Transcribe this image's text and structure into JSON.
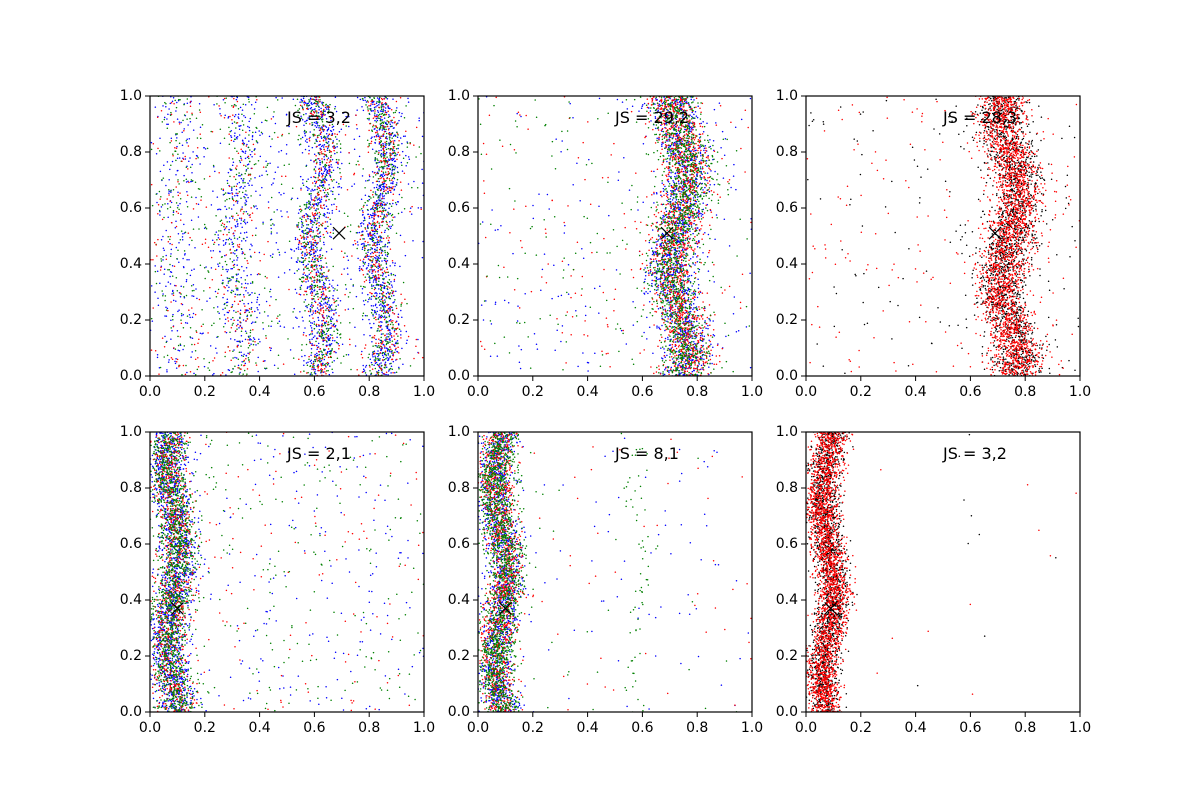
{
  "chart_data": [
    {
      "type": "scatter",
      "annotation": "JS = 3,2",
      "xlim": [
        0,
        1
      ],
      "ylim": [
        0,
        1
      ],
      "xticks": [
        "0.0",
        "0.2",
        "0.4",
        "0.6",
        "0.8",
        "1.0"
      ],
      "yticks": [
        "0.0",
        "0.2",
        "0.4",
        "0.6",
        "0.8",
        "1.0"
      ],
      "marker": {
        "x": 0.69,
        "y": 0.51
      },
      "bands": [
        {
          "center": 0.61,
          "amplitude": 0.025,
          "width": 0.03,
          "weight": 0.3
        },
        {
          "center": 0.84,
          "amplitude": 0.025,
          "width": 0.03,
          "weight": 0.32
        }
      ],
      "bands_secondary": [
        {
          "center": 0.32,
          "amplitude": 0.02,
          "width": 0.04,
          "weight": 0.12
        },
        {
          "center": 0.09,
          "amplitude": 0.02,
          "width": 0.04,
          "weight": 0.06
        }
      ],
      "background_fraction": 0.38,
      "series": [
        {
          "color": "#0000ff",
          "count": 2300
        },
        {
          "color": "#008000",
          "count": 1500
        },
        {
          "color": "#ff0000",
          "count": 1000
        }
      ]
    },
    {
      "type": "scatter",
      "annotation": "JS = 29,2",
      "xlim": [
        0,
        1
      ],
      "ylim": [
        0,
        1
      ],
      "xticks": [
        "0.0",
        "0.2",
        "0.4",
        "0.6",
        "0.8",
        "1.0"
      ],
      "yticks": [
        "0.0",
        "0.2",
        "0.4",
        "0.6",
        "0.8",
        "1.0"
      ],
      "marker": {
        "x": 0.69,
        "y": 0.51
      },
      "bands": [
        {
          "center": 0.735,
          "amplitude": 0.03,
          "width": 0.045,
          "weight": 0.9
        }
      ],
      "bands_secondary": [],
      "background_fraction": 0.1,
      "series": [
        {
          "color": "#0000ff",
          "count": 1500
        },
        {
          "color": "#ff0000",
          "count": 1600
        },
        {
          "color": "#008000",
          "count": 1700
        }
      ]
    },
    {
      "type": "scatter",
      "annotation": "JS = 28,3",
      "xlim": [
        0,
        1
      ],
      "ylim": [
        0,
        1
      ],
      "xticks": [
        "0.0",
        "0.2",
        "0.4",
        "0.6",
        "0.8",
        "1.0"
      ],
      "yticks": [
        "0.0",
        "0.2",
        "0.4",
        "0.6",
        "0.8",
        "1.0"
      ],
      "marker": {
        "x": 0.69,
        "y": 0.51
      },
      "bands": [
        {
          "center": 0.745,
          "amplitude": 0.03,
          "width": 0.045,
          "weight": 0.92
        }
      ],
      "bands_secondary": [],
      "background_fraction": 0.08,
      "series": [
        {
          "color": "#000000",
          "count": 2000
        },
        {
          "color": "#ff0000",
          "count": 2600
        }
      ]
    },
    {
      "type": "scatter",
      "annotation": "JS = 2,1",
      "xlim": [
        0,
        1
      ],
      "ylim": [
        0,
        1
      ],
      "xticks": [
        "0.0",
        "0.2",
        "0.4",
        "0.6",
        "0.8",
        "1.0"
      ],
      "yticks": [
        "0.0",
        "0.2",
        "0.4",
        "0.6",
        "0.8",
        "1.0"
      ],
      "marker": {
        "x": 0.1,
        "y": 0.37
      },
      "bands": [
        {
          "center": 0.085,
          "amplitude": 0.02,
          "width": 0.035,
          "weight": 0.87
        }
      ],
      "bands_secondary": [],
      "background_fraction": 0.13,
      "series": [
        {
          "color": "#0000ff",
          "count": 1700
        },
        {
          "color": "#ff0000",
          "count": 1100
        },
        {
          "color": "#008000",
          "count": 1700
        }
      ]
    },
    {
      "type": "scatter",
      "annotation": "JS = 8,1",
      "xlim": [
        0,
        1
      ],
      "ylim": [
        0,
        1
      ],
      "xticks": [
        "0.0",
        "0.2",
        "0.4",
        "0.6",
        "0.8",
        "1.0"
      ],
      "yticks": [
        "0.0",
        "0.2",
        "0.4",
        "0.6",
        "0.8",
        "1.0"
      ],
      "marker": {
        "x": 0.1,
        "y": 0.37
      },
      "bands": [
        {
          "center": 0.085,
          "amplitude": 0.02,
          "width": 0.033,
          "weight": 0.95
        }
      ],
      "bands_secondary": [
        {
          "center": 0.59,
          "amplitude": 0.02,
          "width": 0.025,
          "weight": 0.03,
          "only_color": "#008000"
        }
      ],
      "background_fraction": 0.02,
      "series": [
        {
          "color": "#0000ff",
          "count": 1400
        },
        {
          "color": "#ff0000",
          "count": 1300
        },
        {
          "color": "#008000",
          "count": 1800
        }
      ]
    },
    {
      "type": "scatter",
      "annotation": "JS = 3,2",
      "xlim": [
        0,
        1
      ],
      "ylim": [
        0,
        1
      ],
      "xticks": [
        "0.0",
        "0.2",
        "0.4",
        "0.6",
        "0.8",
        "1.0"
      ],
      "yticks": [
        "0.0",
        "0.2",
        "0.4",
        "0.6",
        "0.8",
        "1.0"
      ],
      "marker": {
        "x": 0.09,
        "y": 0.37
      },
      "bands": [
        {
          "center": 0.08,
          "amplitude": 0.02,
          "width": 0.03,
          "weight": 0.995
        }
      ],
      "bands_secondary": [],
      "background_fraction": 0.005,
      "series": [
        {
          "color": "#000000",
          "count": 1800
        },
        {
          "color": "#ff0000",
          "count": 2400
        }
      ]
    }
  ]
}
